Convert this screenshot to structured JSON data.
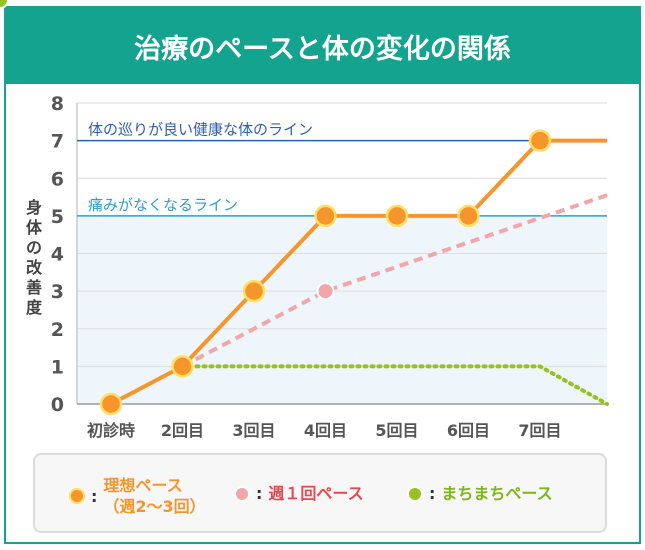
{
  "title": "治療のペースと体の変化の関係",
  "chart_data": {
    "type": "line",
    "ylabel": "身体の改善度",
    "ylim": [
      0,
      8
    ],
    "yticks": [
      0,
      1,
      2,
      3,
      4,
      5,
      6,
      7,
      8
    ],
    "categories": [
      "初診時",
      "2回目",
      "3回目",
      "4回目",
      "5回目",
      "6回目",
      "7回目"
    ],
    "grid": true,
    "reference_lines": [
      {
        "value": 7,
        "label": "体の巡りが良い健康な体のライン",
        "color": "#2f5fb3"
      },
      {
        "value": 5,
        "label": "痛みがなくなるライン",
        "color": "#2c9fd0"
      }
    ],
    "series": [
      {
        "name": "理想ペース（週2〜3回）",
        "color": "#f7952d",
        "style": "solid",
        "x": [
          0,
          1,
          2,
          3,
          4,
          5,
          6,
          7
        ],
        "values": [
          0,
          1,
          3,
          5,
          5,
          5,
          7,
          7
        ],
        "markers": [
          0,
          1,
          2,
          3,
          4,
          5,
          6
        ]
      },
      {
        "name": "週１回ペース",
        "color": "#f2a6a8",
        "style": "dashed",
        "x": [
          1,
          3,
          7
        ],
        "values": [
          1,
          3,
          5.55
        ],
        "markers": [
          1
        ]
      },
      {
        "name": "まちまちペース",
        "color": "#96c11f",
        "style": "dotted",
        "x": [
          1,
          6,
          7
        ],
        "values": [
          1,
          1,
          0
        ],
        "markers": [
          5
        ]
      }
    ]
  },
  "legend": [
    {
      "label_line1": "理想ペース",
      "label_line2": "（週2〜3回）",
      "color": "#f7952d",
      "dot": "#f7952d",
      "dot_border": "#ffe066"
    },
    {
      "label_line1": "週１回ペース",
      "label_line2": "",
      "color": "#e8484e",
      "dot": "#f2a6a8",
      "dot_border": "#ffffff"
    },
    {
      "label_line1": "まちまちペース",
      "label_line2": "",
      "color": "#7fb51c",
      "dot": "#96c11f",
      "dot_border": "#ffffff"
    }
  ],
  "legend_colon": ":"
}
